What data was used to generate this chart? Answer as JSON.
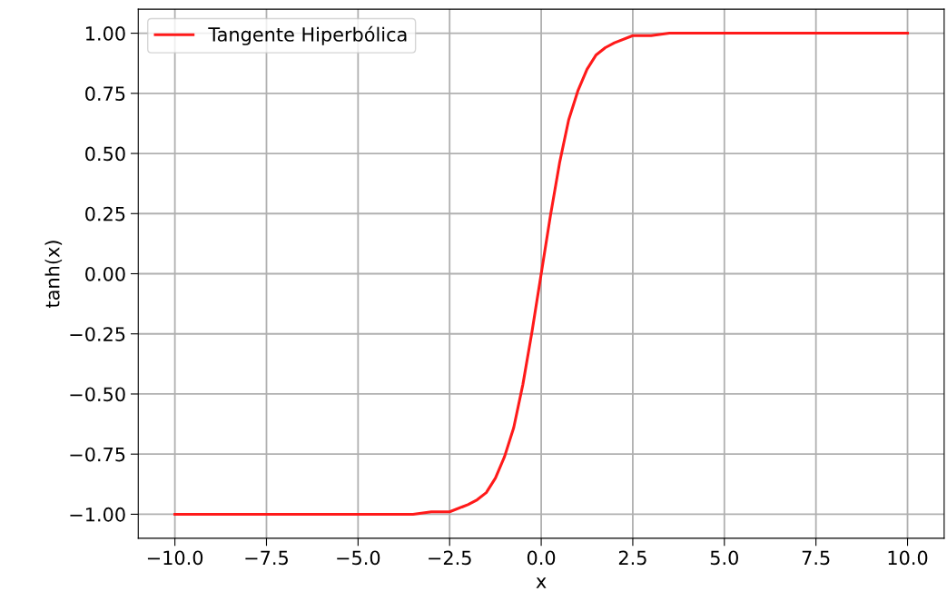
{
  "chart_data": {
    "type": "line",
    "xlabel": "x",
    "ylabel": "tanh(x)",
    "series": [
      {
        "name": "Tangente Hiperbólica",
        "color": "#ff1a1a",
        "x": [
          -10,
          -7.5,
          -5,
          -4,
          -3.5,
          -3,
          -2.5,
          -2,
          -1.75,
          -1.5,
          -1.25,
          -1,
          -0.75,
          -0.5,
          -0.25,
          0,
          0.25,
          0.5,
          0.75,
          1,
          1.25,
          1.5,
          1.75,
          2,
          2.5,
          3,
          3.5,
          4,
          5,
          7.5,
          10
        ],
        "values": [
          -1.0,
          -1.0,
          -1.0,
          -1.0,
          -1.0,
          -0.99,
          -0.99,
          -0.96,
          -0.94,
          -0.91,
          -0.85,
          -0.76,
          -0.64,
          -0.46,
          -0.24,
          0.0,
          0.24,
          0.46,
          0.64,
          0.76,
          0.85,
          0.91,
          0.94,
          0.96,
          0.99,
          0.99,
          1.0,
          1.0,
          1.0,
          1.0,
          1.0
        ]
      }
    ],
    "xlim": [
      -11,
      11
    ],
    "ylim": [
      -1.1,
      1.1
    ],
    "xticks": [
      {
        "value": -10,
        "label": "−10.0"
      },
      {
        "value": -7.5,
        "label": "−7.5"
      },
      {
        "value": -5,
        "label": "−5.0"
      },
      {
        "value": -2.5,
        "label": "−2.5"
      },
      {
        "value": 0,
        "label": "0.0"
      },
      {
        "value": 2.5,
        "label": "2.5"
      },
      {
        "value": 5,
        "label": "5.0"
      },
      {
        "value": 7.5,
        "label": "7.5"
      },
      {
        "value": 10,
        "label": "10.0"
      }
    ],
    "yticks": [
      {
        "value": -1,
        "label": "−1.00"
      },
      {
        "value": -0.75,
        "label": "−0.75"
      },
      {
        "value": -0.5,
        "label": "−0.50"
      },
      {
        "value": -0.25,
        "label": "−0.25"
      },
      {
        "value": 0,
        "label": "0.00"
      },
      {
        "value": 0.25,
        "label": "0.25"
      },
      {
        "value": 0.5,
        "label": "0.50"
      },
      {
        "value": 0.75,
        "label": "0.75"
      },
      {
        "value": 1,
        "label": "1.00"
      }
    ],
    "grid": true,
    "legend": "top left",
    "marker": "none",
    "line_style": "solid"
  }
}
